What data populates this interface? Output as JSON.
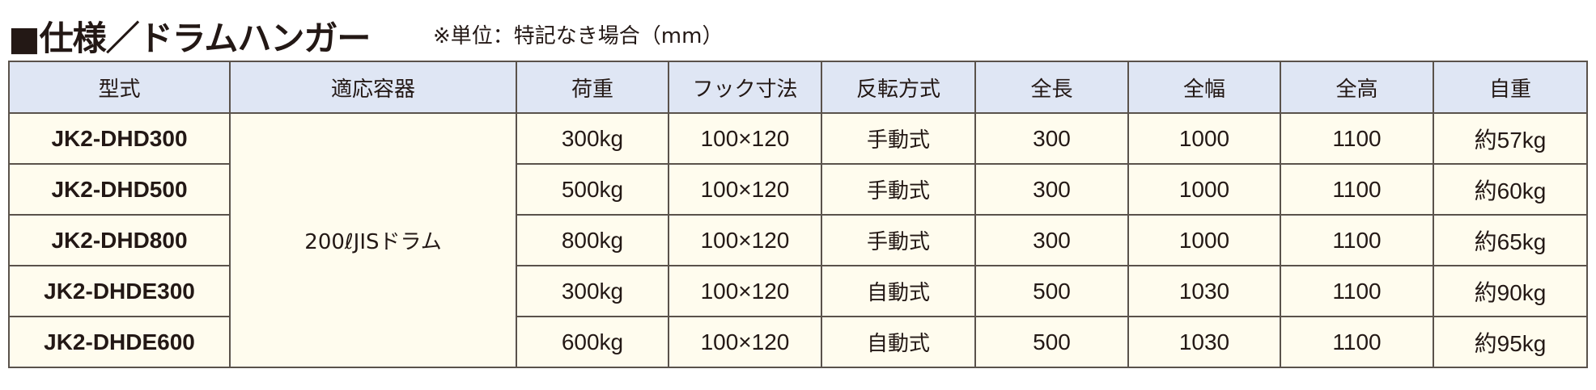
{
  "title": "■仕様／ドラムハンガー",
  "note": "※単位：特記なき場合（mm）",
  "table": {
    "headers": [
      "型式",
      "適応容器",
      "荷重",
      "フック寸法",
      "反転方式",
      "全長",
      "全幅",
      "全高",
      "自重"
    ],
    "container": "200ℓJISドラム",
    "rows": [
      {
        "model": "JK2-DHD300",
        "load": "300kg",
        "hook": "100×120",
        "flip": "手動式",
        "length": "300",
        "width": "1000",
        "height": "1100",
        "weight": "約57kg"
      },
      {
        "model": "JK2-DHD500",
        "load": "500kg",
        "hook": "100×120",
        "flip": "手動式",
        "length": "300",
        "width": "1000",
        "height": "1100",
        "weight": "約60kg"
      },
      {
        "model": "JK2-DHD800",
        "load": "800kg",
        "hook": "100×120",
        "flip": "手動式",
        "length": "300",
        "width": "1000",
        "height": "1100",
        "weight": "約65kg"
      },
      {
        "model": "JK2-DHDE300",
        "load": "300kg",
        "hook": "100×120",
        "flip": "自動式",
        "length": "500",
        "width": "1030",
        "height": "1100",
        "weight": "約90kg"
      },
      {
        "model": "JK2-DHDE600",
        "load": "600kg",
        "hook": "100×120",
        "flip": "自動式",
        "length": "500",
        "width": "1030",
        "height": "1100",
        "weight": "約95kg"
      }
    ]
  },
  "colors": {
    "header_bg": "#dfe6f4",
    "body_bg": "#fffcee",
    "border": "#5a524b"
  }
}
